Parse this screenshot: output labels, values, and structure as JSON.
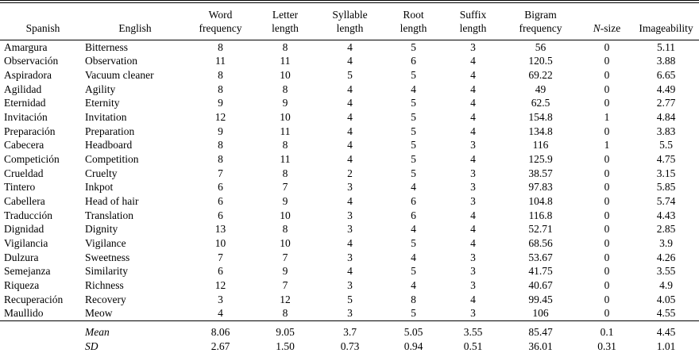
{
  "table": {
    "columns": [
      {
        "key": "spanish",
        "lines": [
          "Spanish"
        ],
        "align": "center"
      },
      {
        "key": "english",
        "lines": [
          "English"
        ],
        "align": "center"
      },
      {
        "key": "word_frequency",
        "lines": [
          "Word",
          "frequency"
        ],
        "align": "center"
      },
      {
        "key": "letter_length",
        "lines": [
          "Letter",
          "length"
        ],
        "align": "center"
      },
      {
        "key": "syllable_length",
        "lines": [
          "Syllable",
          "length"
        ],
        "align": "center"
      },
      {
        "key": "root_length",
        "lines": [
          "Root",
          "length"
        ],
        "align": "center"
      },
      {
        "key": "suffix_length",
        "lines": [
          "Suffix",
          "length"
        ],
        "align": "center"
      },
      {
        "key": "bigram_frequency",
        "lines": [
          "Bigram",
          "frequency"
        ],
        "align": "center"
      },
      {
        "key": "n_size",
        "lines": [
          "N-size"
        ],
        "align": "center",
        "italic_first": true
      },
      {
        "key": "imageability",
        "lines": [
          "Imageability"
        ],
        "align": "center"
      }
    ],
    "rows": [
      [
        "Amargura",
        "Bitterness",
        "8",
        "8",
        "4",
        "5",
        "3",
        "56",
        "0",
        "5.11"
      ],
      [
        "Observación",
        "Observation",
        "11",
        "11",
        "4",
        "6",
        "4",
        "120.5",
        "0",
        "3.88"
      ],
      [
        "Aspiradora",
        "Vacuum cleaner",
        "8",
        "10",
        "5",
        "5",
        "4",
        "69.22",
        "0",
        "6.65"
      ],
      [
        "Agilidad",
        "Agility",
        "8",
        "8",
        "4",
        "4",
        "4",
        "49",
        "0",
        "4.49"
      ],
      [
        "Eternidad",
        "Eternity",
        "9",
        "9",
        "4",
        "5",
        "4",
        "62.5",
        "0",
        "2.77"
      ],
      [
        "Invitación",
        "Invitation",
        "12",
        "10",
        "4",
        "5",
        "4",
        "154.8",
        "1",
        "4.84"
      ],
      [
        "Preparación",
        "Preparation",
        "9",
        "11",
        "4",
        "5",
        "4",
        "134.8",
        "0",
        "3.83"
      ],
      [
        "Cabecera",
        "Headboard",
        "8",
        "8",
        "4",
        "5",
        "3",
        "116",
        "1",
        "5.5"
      ],
      [
        "Competición",
        "Competition",
        "8",
        "11",
        "4",
        "5",
        "4",
        "125.9",
        "0",
        "4.75"
      ],
      [
        "Crueldad",
        "Cruelty",
        "7",
        "8",
        "2",
        "5",
        "3",
        "38.57",
        "0",
        "3.15"
      ],
      [
        "Tintero",
        "Inkpot",
        "6",
        "7",
        "3",
        "4",
        "3",
        "97.83",
        "0",
        "5.85"
      ],
      [
        "Cabellera",
        "Head of hair",
        "6",
        "9",
        "4",
        "6",
        "3",
        "104.8",
        "0",
        "5.74"
      ],
      [
        "Traducción",
        "Translation",
        "6",
        "10",
        "3",
        "6",
        "4",
        "116.8",
        "0",
        "4.43"
      ],
      [
        "Dignidad",
        "Dignity",
        "13",
        "8",
        "3",
        "4",
        "4",
        "52.71",
        "0",
        "2.85"
      ],
      [
        "Vigilancia",
        "Vigilance",
        "10",
        "10",
        "4",
        "5",
        "4",
        "68.56",
        "0",
        "3.9"
      ],
      [
        "Dulzura",
        "Sweetness",
        "7",
        "7",
        "3",
        "4",
        "3",
        "53.67",
        "0",
        "4.26"
      ],
      [
        "Semejanza",
        "Similarity",
        "6",
        "9",
        "4",
        "5",
        "3",
        "41.75",
        "0",
        "3.55"
      ],
      [
        "Riqueza",
        "Richness",
        "12",
        "7",
        "3",
        "4",
        "3",
        "40.67",
        "0",
        "4.9"
      ],
      [
        "Recuperación",
        "Recovery",
        "3",
        "12",
        "5",
        "8",
        "4",
        "99.45",
        "0",
        "4.05"
      ],
      [
        "Maullido",
        "Meow",
        "4",
        "8",
        "3",
        "5",
        "3",
        "106",
        "0",
        "4.55"
      ]
    ],
    "summary_rows": [
      {
        "label": "Mean",
        "values": [
          "8.06",
          "9.05",
          "3.7",
          "5.05",
          "3.55",
          "85.47",
          "0.1",
          "4.45"
        ]
      },
      {
        "label": "SD",
        "values": [
          "2.67",
          "1.50",
          "0.73",
          "0.94",
          "0.51",
          "36.01",
          "0.31",
          "1.01"
        ]
      }
    ]
  }
}
